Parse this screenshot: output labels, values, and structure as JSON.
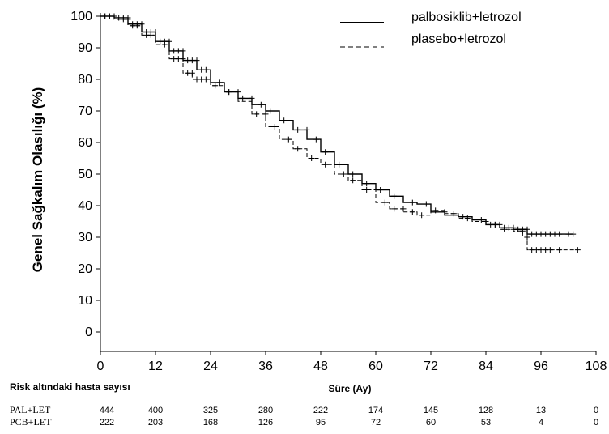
{
  "chart_data": {
    "type": "line",
    "ylabel": "Genel Sağkalım Olasılığı (%)",
    "xlabel": "Süre (Ay)",
    "xlim": [
      0,
      108
    ],
    "ylim": [
      0,
      100
    ],
    "x_ticks": [
      0,
      12,
      24,
      36,
      48,
      60,
      72,
      84,
      96,
      108
    ],
    "y_ticks": [
      0,
      10,
      20,
      30,
      40,
      50,
      60,
      70,
      80,
      90,
      100
    ],
    "legend_position": "top-right",
    "series": [
      {
        "name": "palbosiklib+letrozol",
        "style": "solid",
        "points": [
          [
            0,
            100
          ],
          [
            3,
            99.5
          ],
          [
            6,
            97.5
          ],
          [
            9,
            95
          ],
          [
            12,
            92
          ],
          [
            15,
            89
          ],
          [
            18,
            86
          ],
          [
            21,
            83
          ],
          [
            24,
            79
          ],
          [
            27,
            76
          ],
          [
            30,
            74
          ],
          [
            33,
            72
          ],
          [
            36,
            70
          ],
          [
            39,
            67
          ],
          [
            42,
            64
          ],
          [
            45,
            61
          ],
          [
            48,
            57
          ],
          [
            51,
            53
          ],
          [
            54,
            50
          ],
          [
            57,
            47
          ],
          [
            60,
            45
          ],
          [
            63,
            43
          ],
          [
            66,
            41
          ],
          [
            69,
            40.5
          ],
          [
            72,
            38
          ],
          [
            75,
            37
          ],
          [
            78,
            36.5
          ],
          [
            81,
            35.5
          ],
          [
            84,
            34
          ],
          [
            87,
            33
          ],
          [
            90,
            32.5
          ],
          [
            93,
            31
          ],
          [
            96,
            31
          ],
          [
            100,
            31
          ],
          [
            103,
            31
          ]
        ],
        "censor_x": [
          1,
          2,
          3,
          4,
          5,
          6,
          7,
          8,
          9,
          10,
          11,
          12,
          13,
          14,
          15,
          16,
          17,
          18,
          19,
          20,
          21,
          22,
          23,
          26,
          28,
          31,
          33,
          35,
          37,
          40,
          43,
          45,
          47,
          49,
          52,
          55,
          58,
          61,
          64,
          68,
          71,
          75,
          79,
          83,
          85,
          86,
          87,
          88,
          89,
          90,
          91,
          92,
          93,
          94,
          95,
          96,
          97,
          98,
          99,
          100,
          102,
          103
        ]
      },
      {
        "name": "plasebo+letrozol",
        "style": "dashed",
        "points": [
          [
            0,
            100
          ],
          [
            3,
            99
          ],
          [
            6,
            97
          ],
          [
            9,
            94
          ],
          [
            12,
            91
          ],
          [
            15,
            86.5
          ],
          [
            18,
            82
          ],
          [
            20,
            80
          ],
          [
            24,
            78
          ],
          [
            27,
            76
          ],
          [
            30,
            73
          ],
          [
            33,
            69
          ],
          [
            36,
            65
          ],
          [
            39,
            61
          ],
          [
            42,
            58
          ],
          [
            45,
            55
          ],
          [
            48,
            53
          ],
          [
            51,
            50
          ],
          [
            54,
            48
          ],
          [
            57,
            45
          ],
          [
            60,
            41
          ],
          [
            63,
            39
          ],
          [
            66,
            38
          ],
          [
            69,
            37
          ],
          [
            72,
            38.5
          ],
          [
            75,
            37.5
          ],
          [
            78,
            36
          ],
          [
            81,
            35
          ],
          [
            84,
            34
          ],
          [
            87,
            32.5
          ],
          [
            90,
            32
          ],
          [
            92,
            30
          ],
          [
            93,
            26
          ],
          [
            96,
            26
          ],
          [
            100,
            26
          ],
          [
            104,
            26
          ]
        ],
        "censor_x": [
          1,
          2,
          3,
          5,
          6,
          7,
          8,
          10,
          11,
          14,
          16,
          17,
          18,
          19,
          20,
          21,
          22,
          23,
          25,
          28,
          30,
          34,
          36,
          38,
          41,
          43,
          46,
          49,
          53,
          55,
          58,
          62,
          64,
          66,
          68,
          70,
          73,
          77,
          80,
          84,
          86,
          88,
          90,
          92,
          93,
          94,
          95,
          96,
          97,
          98,
          100,
          104
        ]
      }
    ],
    "risk_table": {
      "title": "Risk altındaki hasta sayısı",
      "time_points": [
        0,
        12,
        24,
        36,
        48,
        60,
        72,
        84,
        96,
        108
      ],
      "rows": [
        {
          "label": "PAL+LET",
          "values": [
            "444",
            "400",
            "325",
            "280",
            "222",
            "174",
            "145",
            "128",
            "13",
            "0"
          ]
        },
        {
          "label": "PCB+LET",
          "values": [
            "222",
            "203",
            "168",
            "126",
            "95",
            "72",
            "60",
            "53",
            "4",
            "0"
          ]
        }
      ]
    }
  }
}
